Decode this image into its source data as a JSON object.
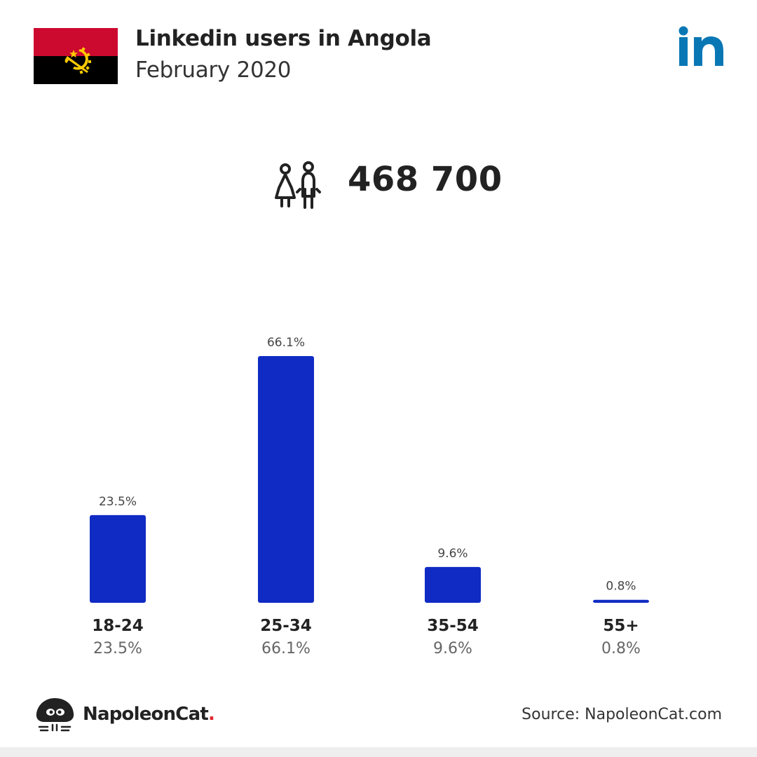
{
  "header": {
    "title": "Linkedin users in Angola",
    "subtitle": "February 2020",
    "flag": "angola-flag",
    "brand_logo_text": "in",
    "brand_color": "#0a77b5"
  },
  "summary": {
    "total_users": "468 700",
    "icon": "people-icon"
  },
  "chart_data": {
    "type": "bar",
    "categories": [
      "18-24",
      "25-34",
      "35-54",
      "55+"
    ],
    "values": [
      23.5,
      66.1,
      9.6,
      0.8
    ],
    "value_labels": [
      "23.5%",
      "66.1%",
      "9.6%",
      "0.8%"
    ],
    "ylim": [
      0,
      66.1
    ],
    "unit": "%",
    "bar_color": "#102bc3",
    "grid": false,
    "legend": "none"
  },
  "footer": {
    "brand": "NapoleonCat",
    "brand_dot": ".",
    "source": "Source: NapoleonCat.com",
    "accent_color": "#e0262b"
  }
}
